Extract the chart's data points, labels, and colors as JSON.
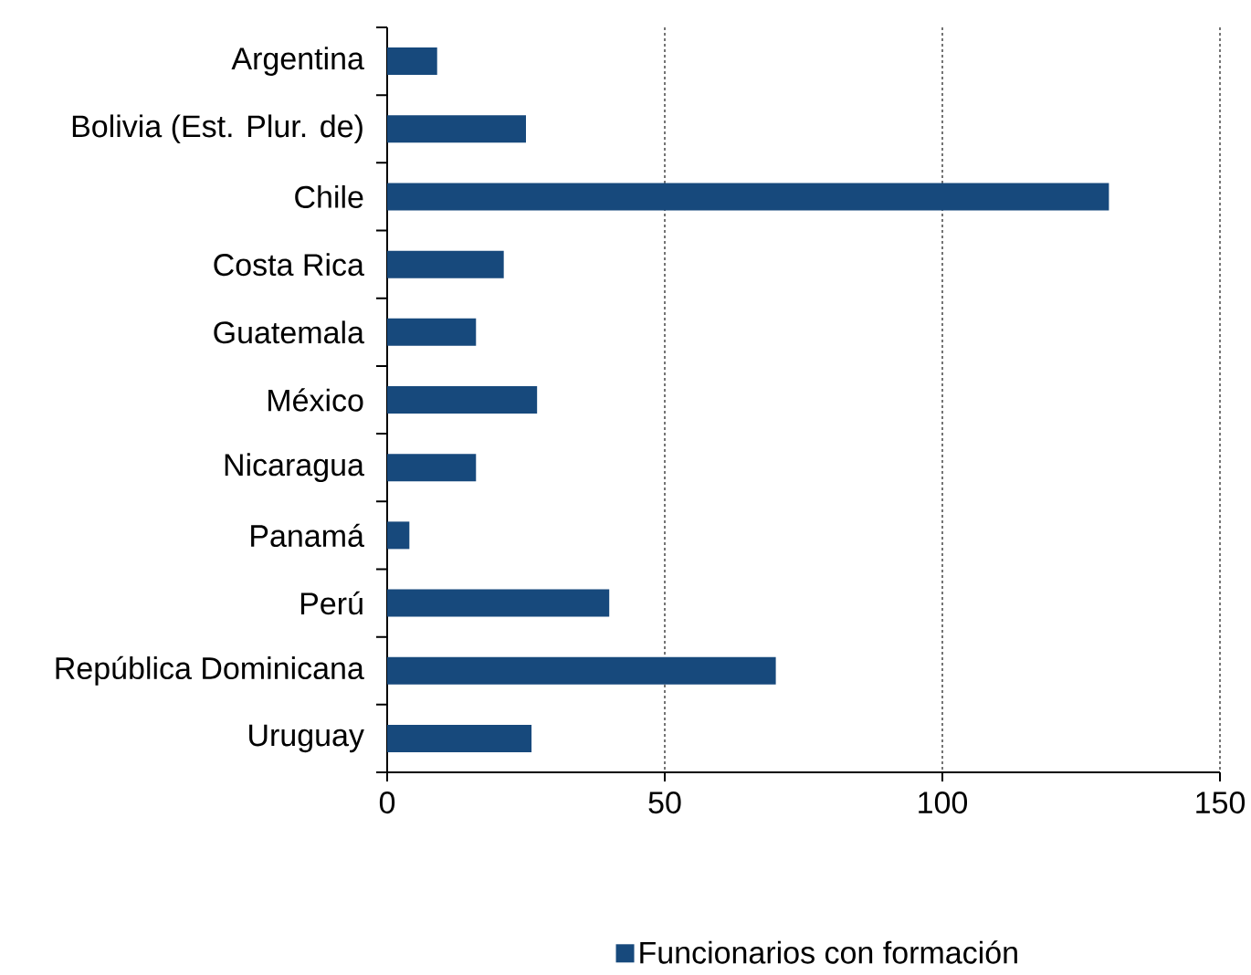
{
  "chart_data": {
    "type": "bar",
    "orientation": "horizontal",
    "categories": [
      "Argentina",
      "Bolivia (Est. Plur. de)",
      "Chile",
      "Costa Rica",
      "Guatemala",
      "México",
      "Nicaragua",
      "Panamá",
      "Perú",
      "República Dominicana",
      "Uruguay"
    ],
    "series": [
      {
        "name": "Funcionarios con formación",
        "color": "#17497c",
        "values": [
          9,
          25,
          130,
          21,
          16,
          27,
          16,
          4,
          40,
          70,
          26
        ]
      }
    ],
    "xlim": [
      0,
      150
    ],
    "xticks": [
      0,
      50,
      100,
      150
    ],
    "grid": "x",
    "legend": "bottom"
  }
}
